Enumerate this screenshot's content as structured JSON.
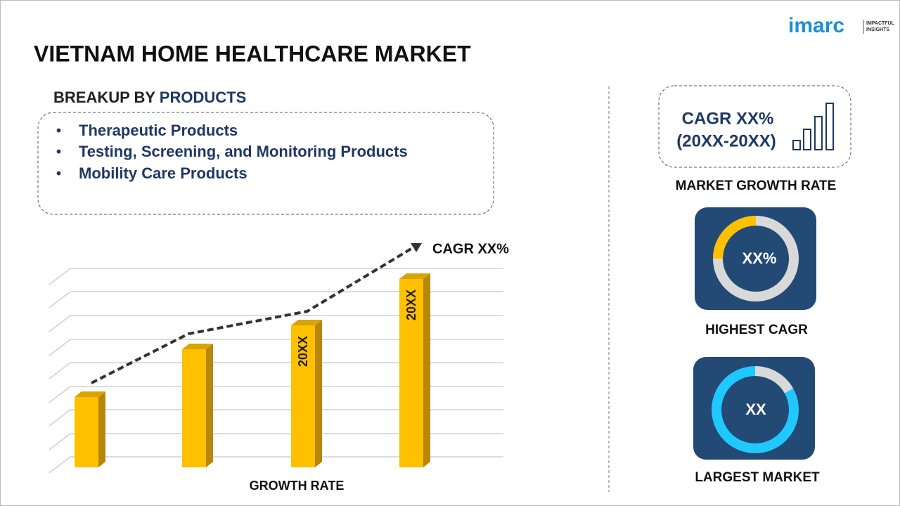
{
  "header": {
    "title": "VIETNAM HOME HEALTHCARE MARKET",
    "logo": "imarc",
    "logo_tagline": [
      "IMPACTFUL",
      "INSIGHTS"
    ]
  },
  "breakup": {
    "label": "BREAKUP BY",
    "highlight": "PRODUCTS",
    "items": [
      "Therapeutic Products",
      "Testing, Screening, and Monitoring Products",
      "Mobility Care Products"
    ]
  },
  "chart": {
    "bar_labels": [
      "20XX",
      "20XX"
    ],
    "cagr": "CAGR XX%",
    "axis_label": "GROWTH RATE"
  },
  "side": {
    "growth": {
      "line1": "CAGR XX%",
      "line2": "(20XX-20XX)",
      "caption": "MARKET GROWTH RATE"
    },
    "highest": {
      "value": "XX%",
      "caption": "HIGHEST CAGR"
    },
    "largest": {
      "value": "XX",
      "caption": "LARGEST MARKET"
    }
  }
}
